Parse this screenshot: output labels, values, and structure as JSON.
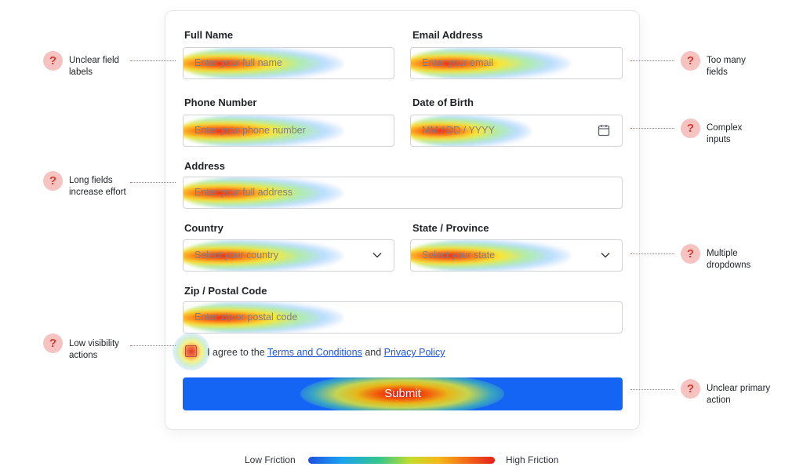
{
  "form": {
    "fields": [
      {
        "label": "Full Name",
        "placeholder": "Enter your full name"
      },
      {
        "label": "Email Address",
        "placeholder": "Enter your email"
      },
      {
        "label": "Phone Number",
        "placeholder": "Enter your phone number"
      },
      {
        "label": "Date of Birth",
        "placeholder": "MM / DD / YYYY"
      },
      {
        "label": "Address",
        "placeholder": "Enter your full address"
      },
      {
        "label": "Country",
        "placeholder": "Select your country"
      },
      {
        "label": "State / Province",
        "placeholder": "Select your state"
      },
      {
        "label": "Zip / Postal Code",
        "placeholder": "Enter zip or postal code"
      }
    ],
    "agree": {
      "prefix": "I agree to the",
      "terms_link": "Terms and Conditions",
      "middle": "and",
      "privacy_link": "Privacy Policy"
    },
    "submit_label": "Submit"
  },
  "annotations": {
    "icon_glyph": "?",
    "left": [
      {
        "text": "Unclear field labels"
      },
      {
        "text": "Long fields increase effort"
      },
      {
        "text": "Low visibility actions"
      }
    ],
    "right": [
      {
        "text": "Too many fields"
      },
      {
        "text": "Complex inputs"
      },
      {
        "text": "Multiple dropdowns"
      },
      {
        "text": "Unclear primary action"
      }
    ]
  },
  "legend": {
    "low_label": "Low Friction",
    "high_label": "High Friction"
  },
  "colors": {
    "primary": "#1565f5",
    "annotation_icon_bg": "#f6c3c0",
    "annotation_icon_fg": "#d33b33",
    "link": "#1f56d6"
  },
  "icons": {
    "calendar": "calendar-icon",
    "dropdown": "chevron-down-icon",
    "annotation": "question-icon"
  }
}
